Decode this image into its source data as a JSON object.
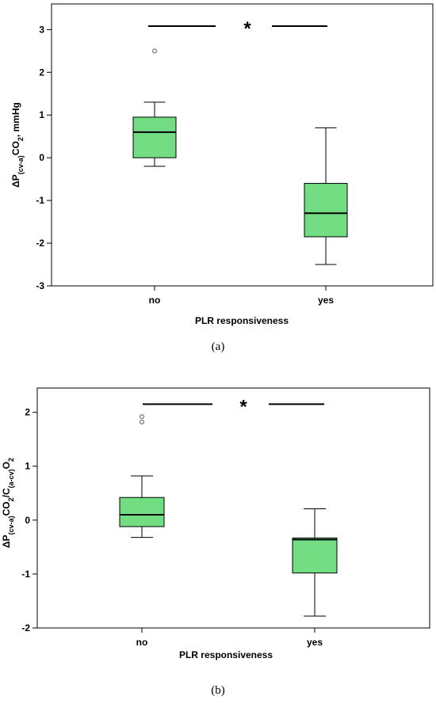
{
  "chart_data": [
    {
      "type": "box",
      "caption": "(a)",
      "xlabel": "PLR responsiveness",
      "ylabel_parts": [
        "ΔP",
        "(cv-a)",
        "CO",
        "2",
        ", mmHg"
      ],
      "ylim": [
        -3,
        3.6
      ],
      "yticks": [
        -3,
        -2,
        -1,
        0,
        1,
        2,
        3
      ],
      "categories": [
        "no",
        "yes"
      ],
      "boxes": [
        {
          "category": "no",
          "min": -0.2,
          "q1": 0.0,
          "median": 0.6,
          "q3": 0.95,
          "max": 1.3,
          "outliers": [
            2.5
          ]
        },
        {
          "category": "yes",
          "min": -2.5,
          "q1": -1.85,
          "median": -1.3,
          "q3": -0.6,
          "max": 0.7,
          "outliers": []
        }
      ],
      "significance": {
        "symbol": "*",
        "y": 3.08
      },
      "box_color": "#72dd82"
    },
    {
      "type": "box",
      "caption": "(b)",
      "xlabel": "PLR responsiveness",
      "ylabel_parts": [
        "ΔP",
        "(cv-a)",
        "CO",
        "2",
        "/C",
        "(a-cv)",
        "O",
        "2"
      ],
      "ylim": [
        -2,
        2.45
      ],
      "yticks": [
        -2,
        -1,
        0,
        1,
        2
      ],
      "categories": [
        "no",
        "yes"
      ],
      "boxes": [
        {
          "category": "no",
          "min": -0.32,
          "q1": -0.12,
          "median": 0.1,
          "q3": 0.42,
          "max": 0.82,
          "outliers": [
            1.82,
            1.92
          ]
        },
        {
          "category": "yes",
          "min": -1.78,
          "q1": -0.98,
          "median": -0.36,
          "q3": -0.33,
          "max": 0.21,
          "outliers": []
        }
      ],
      "significance": {
        "symbol": "*",
        "y": 2.15
      },
      "box_color": "#72dd82"
    }
  ]
}
